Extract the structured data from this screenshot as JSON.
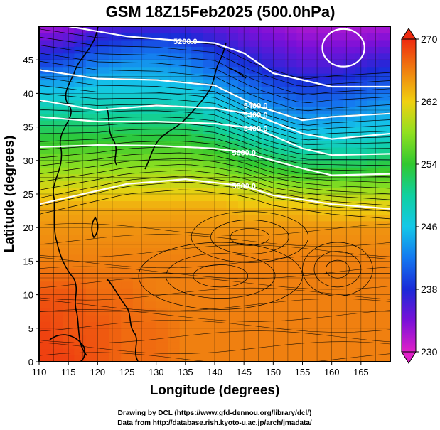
{
  "chart_data": {
    "type": "heatmap",
    "title": "GSM 18Z15Feb2025 (500.0hPa)",
    "xlabel": "Longitude (degrees)",
    "ylabel": "Latitude  (degrees)",
    "xlim": [
      110,
      170
    ],
    "ylim": [
      0,
      50
    ],
    "x_ticks": [
      110,
      115,
      120,
      125,
      130,
      135,
      140,
      145,
      150,
      155,
      160,
      165
    ],
    "y_ticks": [
      0,
      5,
      10,
      15,
      20,
      25,
      30,
      35,
      40,
      45
    ],
    "colorbar": {
      "range": [
        230,
        270
      ],
      "ticks": [
        230,
        238,
        246,
        254,
        262,
        270
      ],
      "stops": [
        {
          "value": 230,
          "color": "#e020c8"
        },
        {
          "value": 234,
          "color": "#7a10d8"
        },
        {
          "value": 238,
          "color": "#1a2ad8"
        },
        {
          "value": 242,
          "color": "#1478f0"
        },
        {
          "value": 246,
          "color": "#14c8e8"
        },
        {
          "value": 250,
          "color": "#10d0a0"
        },
        {
          "value": 254,
          "color": "#30c830"
        },
        {
          "value": 258,
          "color": "#90e020"
        },
        {
          "value": 262,
          "color": "#f0d010"
        },
        {
          "value": 266,
          "color": "#f08010"
        },
        {
          "value": 270,
          "color": "#ee2a10"
        }
      ]
    },
    "temperature_rows": [
      {
        "lat": 50,
        "values": [
          232,
          233,
          235,
          236,
          236,
          236,
          235,
          234,
          233,
          232,
          232,
          232,
          232
        ]
      },
      {
        "lat": 47,
        "values": [
          236,
          237,
          239,
          240,
          241,
          240,
          238,
          236,
          235,
          234,
          234,
          234,
          235
        ]
      },
      {
        "lat": 44,
        "values": [
          240,
          241,
          243,
          244,
          244,
          243,
          241,
          239,
          237,
          236,
          236,
          237,
          238
        ]
      },
      {
        "lat": 41,
        "values": [
          245,
          245,
          246,
          246,
          246,
          246,
          244,
          242,
          240,
          239,
          239,
          240,
          241
        ]
      },
      {
        "lat": 38,
        "values": [
          249,
          249,
          249,
          249,
          249,
          249,
          247,
          245,
          243,
          242,
          242,
          243,
          244
        ]
      },
      {
        "lat": 35,
        "values": [
          252,
          252,
          252,
          252,
          252,
          252,
          250,
          248,
          246,
          245,
          245,
          246,
          246
        ]
      },
      {
        "lat": 32,
        "values": [
          255,
          255,
          255,
          255,
          255,
          255,
          254,
          252,
          250,
          249,
          249,
          249,
          250
        ]
      },
      {
        "lat": 29,
        "values": [
          258,
          258,
          258,
          258,
          258,
          258,
          257,
          255,
          254,
          253,
          253,
          253,
          254
        ]
      },
      {
        "lat": 26,
        "values": [
          261,
          261,
          261,
          261,
          261,
          261,
          261,
          260,
          259,
          258,
          258,
          258,
          258
        ]
      },
      {
        "lat": 23,
        "values": [
          264,
          264,
          264,
          264,
          264,
          264,
          264,
          263,
          263,
          263,
          262,
          262,
          262
        ]
      },
      {
        "lat": 20,
        "values": [
          265,
          265,
          265,
          265,
          265,
          265,
          265,
          265,
          265,
          265,
          265,
          265,
          265
        ]
      },
      {
        "lat": 15,
        "values": [
          266,
          266,
          266,
          266,
          266,
          266,
          266,
          266,
          266,
          266,
          266,
          266,
          266
        ]
      },
      {
        "lat": 10,
        "values": [
          268,
          268,
          267,
          267,
          266,
          266,
          266,
          266,
          266,
          266,
          266,
          266,
          266
        ]
      },
      {
        "lat": 5,
        "values": [
          269,
          268,
          268,
          267,
          267,
          266,
          266,
          266,
          266,
          266,
          266,
          266,
          266
        ]
      },
      {
        "lat": 0,
        "values": [
          269,
          269,
          268,
          267,
          267,
          266,
          266,
          266,
          266,
          266,
          266,
          266,
          266
        ]
      }
    ],
    "lon_samples": [
      110,
      115,
      120,
      125,
      130,
      135,
      140,
      145,
      150,
      155,
      160,
      165,
      170
    ],
    "height_contours": [
      {
        "label": "5200.0",
        "label_at": [
          135,
          47.8
        ],
        "points": [
          [
            115,
            50
          ],
          [
            125,
            48.5
          ],
          [
            135,
            47.8
          ],
          [
            140,
            47.5
          ],
          [
            145,
            46
          ],
          [
            150,
            43
          ],
          [
            155,
            42
          ],
          [
            160,
            41
          ],
          [
            170,
            41
          ]
        ]
      },
      {
        "label": "5400.0",
        "label_at": [
          147,
          38.2
        ],
        "points": [
          [
            110,
            43.5
          ],
          [
            120,
            42.2
          ],
          [
            130,
            42
          ],
          [
            140,
            41.2
          ],
          [
            147,
            38.2
          ],
          [
            155,
            36
          ],
          [
            160,
            36.5
          ],
          [
            170,
            37
          ]
        ]
      },
      {
        "label": "5400.0",
        "label_at": [
          147,
          36.8
        ],
        "points": [
          [
            110,
            39
          ],
          [
            120,
            37.5
          ],
          [
            130,
            38.2
          ],
          [
            140,
            37.8
          ],
          [
            147,
            36.8
          ],
          [
            155,
            34
          ],
          [
            160,
            33.2
          ],
          [
            170,
            34
          ]
        ]
      },
      {
        "label": "5400.0",
        "label_at": [
          147,
          34.8
        ],
        "points": [
          [
            110,
            36.5
          ],
          [
            120,
            35.8
          ],
          [
            130,
            35.8
          ],
          [
            140,
            35.5
          ],
          [
            147,
            34.8
          ],
          [
            155,
            31.8
          ],
          [
            160,
            30.8
          ],
          [
            170,
            31
          ]
        ]
      },
      {
        "label": "5600.0",
        "label_at": [
          145,
          31.2
        ],
        "points": [
          [
            110,
            32
          ],
          [
            120,
            32.3
          ],
          [
            130,
            32.2
          ],
          [
            140,
            31.8
          ],
          [
            145,
            31.2
          ],
          [
            155,
            28.8
          ],
          [
            160,
            27.8
          ],
          [
            170,
            28
          ]
        ]
      },
      {
        "label": "5800.0",
        "label_at": [
          145,
          26.2
        ],
        "points": [
          [
            110,
            23.5
          ],
          [
            115,
            24.5
          ],
          [
            125,
            26.5
          ],
          [
            135,
            27.2
          ],
          [
            145,
            26.2
          ],
          [
            150,
            24.8
          ],
          [
            160,
            23.5
          ],
          [
            170,
            22.8
          ]
        ]
      }
    ],
    "closed_contours": [
      {
        "center": [
          162,
          46.8
        ],
        "rx": 3.6,
        "ry": 2.8
      }
    ],
    "eddies": [
      {
        "center": [
          141,
          12.8
        ],
        "rx": 14,
        "ry": 5
      },
      {
        "center": [
          146,
          18.6
        ],
        "rx": 10,
        "ry": 3.8
      },
      {
        "center": [
          161,
          13.8
        ],
        "rx": 6,
        "ry": 4
      }
    ]
  },
  "credits": [
    "Drawing by DCL (https://www.gfd-dennou.org/library/dcl/)",
    "Data from http://database.rish.kyoto-u.ac.jp/arch/jmadata/"
  ]
}
